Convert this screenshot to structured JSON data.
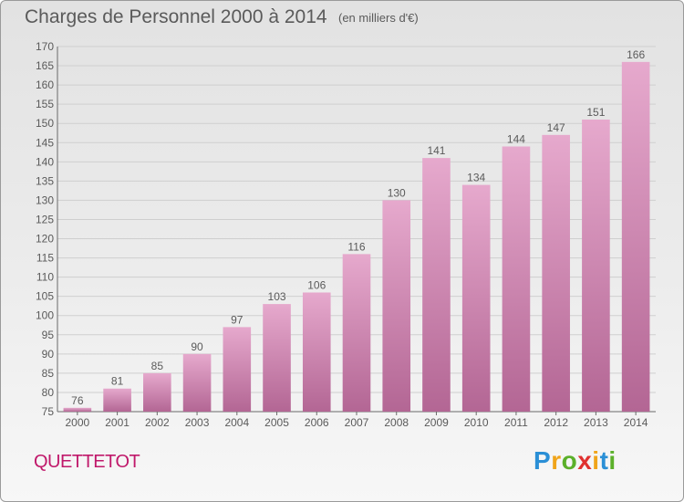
{
  "header": {
    "title": "Charges de Personnel 2000 à 2014",
    "unit": "(en milliers d'€)"
  },
  "footer": {
    "commune": "QUETTETOT",
    "logo": {
      "text": "Proxiti",
      "letter_colors": [
        "#2a8fd6",
        "#f0a419",
        "#5bb02a",
        "#e0312f",
        "#f0a419",
        "#2a8fd6",
        "#5bb02a"
      ]
    }
  },
  "colors": {
    "bar_top": "#e6a9cd",
    "bar_bottom": "#b36694",
    "commune": "#c0186a",
    "text": "#5a5a5a",
    "grid": "#cfcfcf"
  },
  "chart_data": {
    "type": "bar",
    "categories": [
      "2000",
      "2001",
      "2002",
      "2003",
      "2004",
      "2005",
      "2006",
      "2007",
      "2008",
      "2009",
      "2010",
      "2011",
      "2012",
      "2013",
      "2014"
    ],
    "values": [
      76,
      81,
      85,
      90,
      97,
      103,
      106,
      116,
      130,
      141,
      134,
      144,
      147,
      151,
      166
    ],
    "ylim": [
      75,
      170
    ],
    "ytick_step": 5,
    "grid": true,
    "data_labels": true
  }
}
